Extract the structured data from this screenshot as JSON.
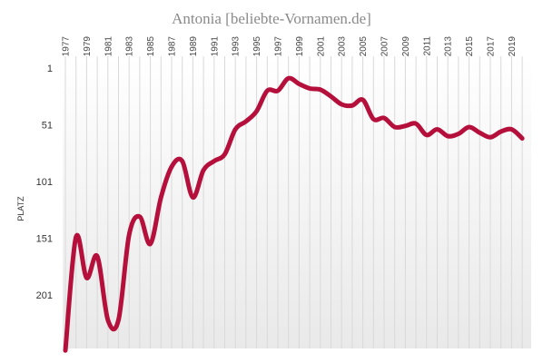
{
  "chart_data": {
    "type": "line",
    "title": "Antonia  [beliebte-Vornamen.de]",
    "ylabel": "PLATZ",
    "xlabel": "",
    "x_tick_labels": [
      "1977",
      "1979",
      "1981",
      "1983",
      "1985",
      "1987",
      "1989",
      "1991",
      "1993",
      "1995",
      "1997",
      "1999",
      "2001",
      "2003",
      "2005",
      "2007",
      "2009",
      "2011",
      "2013",
      "2015",
      "2017",
      "2019"
    ],
    "y_tick_labels": [
      "1",
      "51",
      "101",
      "151",
      "201"
    ],
    "ylim": [
      1,
      251
    ],
    "y_inverted": true,
    "xlim": [
      1977,
      2020
    ],
    "grid": "vertical",
    "line_color": "#b5103c",
    "series": [
      {
        "name": "",
        "x": [
          1977,
          1978,
          1979,
          1980,
          1981,
          1982,
          1983,
          1984,
          1985,
          1986,
          1987,
          1988,
          1989,
          1990,
          1991,
          1992,
          1993,
          1994,
          1995,
          1996,
          1997,
          1998,
          1999,
          2000,
          2001,
          2002,
          2003,
          2004,
          2005,
          2006,
          2007,
          2008,
          2009,
          2010,
          2011,
          2012,
          2013,
          2014,
          2015,
          2016,
          2017,
          2018,
          2019,
          2020
        ],
        "values": [
          250,
          150,
          186,
          167,
          223,
          223,
          148,
          132,
          156,
          115,
          88,
          83,
          115,
          91,
          83,
          77,
          55,
          48,
          39,
          21,
          21,
          10,
          15,
          19,
          20,
          26,
          33,
          34,
          29,
          46,
          45,
          53,
          52,
          50,
          60,
          55,
          61,
          59,
          53,
          58,
          62,
          57,
          55,
          63
        ]
      }
    ]
  }
}
